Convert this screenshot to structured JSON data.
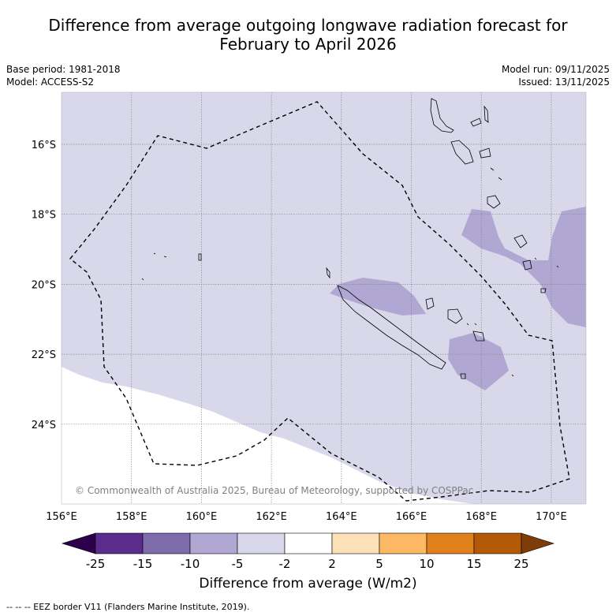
{
  "title_line1": "Difference from average outgoing longwave radiation forecast for",
  "title_line2": "February to April 2026",
  "base_period": "Base period: 1981-2018",
  "model": "Model: ACCESS-S2",
  "model_run": "Model run: 09/11/2025",
  "issued": "Issued: 13/11/2025",
  "copyright": "© Commonwealth of Australia 2025, Bureau of Meteorology, supported by COSPPac",
  "lon_labels": [
    "156°E",
    "158°E",
    "160°E",
    "162°E",
    "164°E",
    "166°E",
    "168°E",
    "170°E"
  ],
  "lat_labels": [
    "16°S",
    "18°S",
    "20°S",
    "22°S",
    "24°S"
  ],
  "colorbar": {
    "title": "Difference from average (W/m2)",
    "ticks": [
      "-25",
      "-15",
      "-10",
      "-5",
      "-2",
      "2",
      "5",
      "10",
      "15",
      "25"
    ],
    "colors": [
      "#5b2c8c",
      "#7e6ba9",
      "#b0a8d2",
      "#d8d8ea",
      "#ffffff",
      "#fde0b8",
      "#fdb865",
      "#e0811c",
      "#b35a09"
    ],
    "under_color": "#2d004b",
    "over_color": "#7f3b08"
  },
  "footer": "--  --  -- EEZ border V11 (Flanders Marine Institute, 2019)."
}
